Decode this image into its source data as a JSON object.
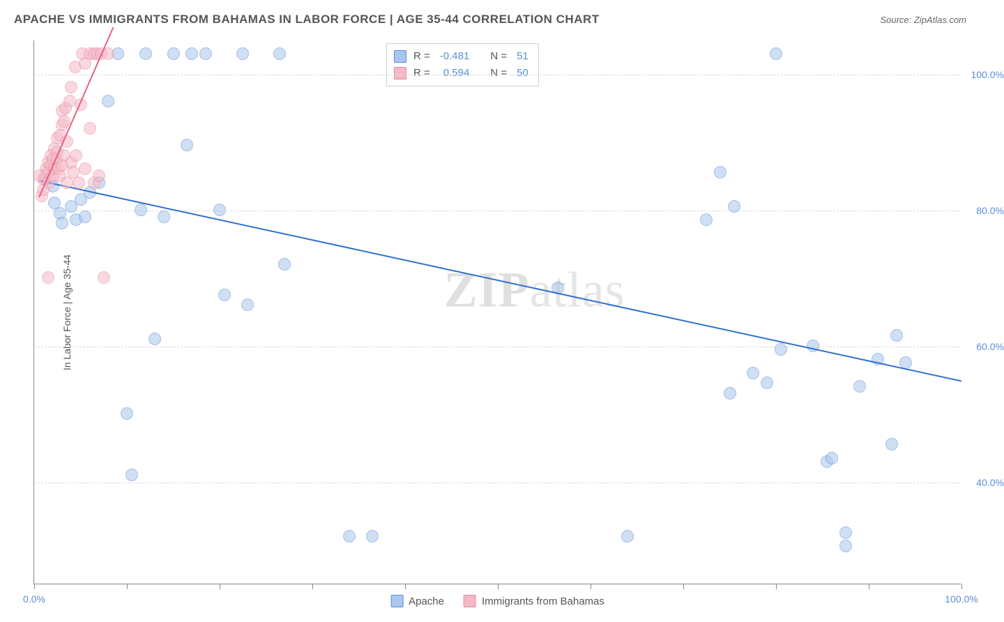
{
  "title": "APACHE VS IMMIGRANTS FROM BAHAMAS IN LABOR FORCE | AGE 35-44 CORRELATION CHART",
  "source_label": "Source: ZipAtlas.com",
  "watermark_a": "ZIP",
  "watermark_b": "atlas",
  "yaxis_label": "In Labor Force | Age 35-44",
  "chart": {
    "type": "scatter",
    "xlim": [
      0,
      100
    ],
    "ylim": [
      25,
      105
    ],
    "yticks": [
      40,
      60,
      80,
      100
    ],
    "ytick_labels": [
      "40.0%",
      "60.0%",
      "80.0%",
      "100.0%"
    ],
    "xtick_positions": [
      0,
      10,
      20,
      30,
      40,
      50,
      60,
      70,
      80,
      90,
      100
    ],
    "xtick_labels_shown": {
      "0": "0.0%",
      "100": "100.0%"
    },
    "background_color": "#ffffff",
    "grid_color": "#d8d8d8",
    "point_radius": 9,
    "point_opacity": 0.55,
    "series": [
      {
        "name": "Apache",
        "color_fill": "#a9c6ec",
        "color_stroke": "#5b8dd6",
        "trend_color": "#2f6fd0",
        "R": "-0.481",
        "N": "51",
        "trend": {
          "x1": 0.5,
          "y1": 84.5,
          "x2": 100,
          "y2": 55
        },
        "points": [
          [
            1.2,
            84.5
          ],
          [
            2.0,
            83.5
          ],
          [
            2.2,
            81.0
          ],
          [
            2.8,
            79.5
          ],
          [
            3.0,
            78.0
          ],
          [
            4.0,
            80.5
          ],
          [
            4.5,
            78.5
          ],
          [
            5.0,
            81.5
          ],
          [
            5.5,
            79.0
          ],
          [
            6.0,
            82.5
          ],
          [
            7.0,
            84.0
          ],
          [
            8.0,
            96.0
          ],
          [
            9.0,
            103.0
          ],
          [
            10.0,
            50.0
          ],
          [
            10.5,
            41.0
          ],
          [
            11.5,
            80.0
          ],
          [
            12.0,
            103.0
          ],
          [
            13.0,
            61.0
          ],
          [
            14.0,
            79.0
          ],
          [
            15.0,
            103.0
          ],
          [
            16.5,
            89.5
          ],
          [
            17.0,
            103.0
          ],
          [
            18.5,
            103.0
          ],
          [
            20.0,
            80.0
          ],
          [
            20.5,
            67.5
          ],
          [
            22.5,
            103.0
          ],
          [
            23.0,
            66.0
          ],
          [
            26.5,
            103.0
          ],
          [
            27.0,
            72.0
          ],
          [
            34.0,
            32.0
          ],
          [
            36.5,
            32.0
          ],
          [
            56.5,
            68.5
          ],
          [
            64.0,
            32.0
          ],
          [
            72.5,
            78.5
          ],
          [
            74.0,
            85.5
          ],
          [
            75.0,
            53.0
          ],
          [
            75.5,
            80.5
          ],
          [
            77.5,
            56.0
          ],
          [
            79.0,
            54.5
          ],
          [
            80.0,
            103.0
          ],
          [
            80.5,
            59.5
          ],
          [
            84.0,
            60.0
          ],
          [
            85.5,
            43.0
          ],
          [
            86.0,
            43.5
          ],
          [
            87.5,
            32.5
          ],
          [
            87.5,
            30.5
          ],
          [
            89.0,
            54.0
          ],
          [
            91.0,
            58.0
          ],
          [
            92.5,
            45.5
          ],
          [
            93.0,
            61.5
          ],
          [
            94.0,
            57.5
          ]
        ]
      },
      {
        "name": "Immigrants from Bahamas",
        "color_fill": "#f5b9c6",
        "color_stroke": "#e78aa0",
        "trend_color": "#e85f82",
        "R": "0.594",
        "N": "50",
        "trend": {
          "x1": 0.5,
          "y1": 82.0,
          "x2": 8.5,
          "y2": 107.0
        },
        "points": [
          [
            0.8,
            82.0
          ],
          [
            1.0,
            83.0
          ],
          [
            1.0,
            84.5
          ],
          [
            1.2,
            85.0
          ],
          [
            1.3,
            86.0
          ],
          [
            1.5,
            85.5
          ],
          [
            1.5,
            87.0
          ],
          [
            1.6,
            84.0
          ],
          [
            1.8,
            86.5
          ],
          [
            1.8,
            88.0
          ],
          [
            2.0,
            85.0
          ],
          [
            2.0,
            87.5
          ],
          [
            2.2,
            86.0
          ],
          [
            2.2,
            89.0
          ],
          [
            2.4,
            87.5
          ],
          [
            2.5,
            88.5
          ],
          [
            2.5,
            90.5
          ],
          [
            2.6,
            86.0
          ],
          [
            2.8,
            91.0
          ],
          [
            2.8,
            85.0
          ],
          [
            3.0,
            92.5
          ],
          [
            3.0,
            86.5
          ],
          [
            3.0,
            94.5
          ],
          [
            3.2,
            88.0
          ],
          [
            3.2,
            93.0
          ],
          [
            3.4,
            95.0
          ],
          [
            3.5,
            90.0
          ],
          [
            3.5,
            84.0
          ],
          [
            3.8,
            96.0
          ],
          [
            4.0,
            87.0
          ],
          [
            4.0,
            98.0
          ],
          [
            4.2,
            85.5
          ],
          [
            4.4,
            101.0
          ],
          [
            4.5,
            88.0
          ],
          [
            4.8,
            84.0
          ],
          [
            5.0,
            95.5
          ],
          [
            5.2,
            103.0
          ],
          [
            5.5,
            101.5
          ],
          [
            5.5,
            86.0
          ],
          [
            6.0,
            92.0
          ],
          [
            6.0,
            103.0
          ],
          [
            6.5,
            103.0
          ],
          [
            6.5,
            84.0
          ],
          [
            6.8,
            103.0
          ],
          [
            7.0,
            85.0
          ],
          [
            7.2,
            103.0
          ],
          [
            7.5,
            70.0
          ],
          [
            8.0,
            103.0
          ],
          [
            1.5,
            70.0
          ],
          [
            0.5,
            85.0
          ]
        ]
      }
    ]
  },
  "stat_legend": {
    "rows": [
      {
        "swatch_fill": "#a9c6ec",
        "swatch_stroke": "#5b8dd6",
        "R_label": "R =",
        "R_value": "-0.481",
        "N_label": "N =",
        "N_value": "51"
      },
      {
        "swatch_fill": "#f5b9c6",
        "swatch_stroke": "#e78aa0",
        "R_label": "R =",
        "R_value": "0.594",
        "N_label": "N =",
        "N_value": "50"
      }
    ]
  },
  "bottom_legend": {
    "items": [
      {
        "swatch_fill": "#a9c6ec",
        "swatch_stroke": "#5b8dd6",
        "label": "Apache"
      },
      {
        "swatch_fill": "#f5b9c6",
        "swatch_stroke": "#e78aa0",
        "label": "Immigrants from Bahamas"
      }
    ]
  }
}
